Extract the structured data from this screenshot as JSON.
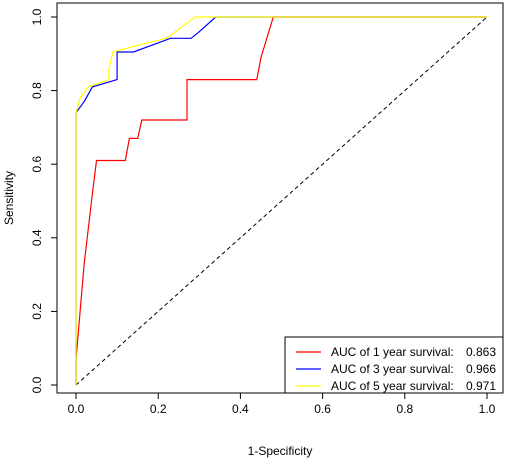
{
  "chart_data": {
    "type": "line",
    "title": "",
    "xlabel": "1-Specificity",
    "ylabel": "Sensitivity",
    "xlim": [
      0,
      1
    ],
    "ylim": [
      0,
      1
    ],
    "xticks": [
      "0.0",
      "0.2",
      "0.4",
      "0.6",
      "0.8",
      "1.0"
    ],
    "yticks": [
      "0.0",
      "0.2",
      "0.4",
      "0.6",
      "0.8",
      "1.0"
    ],
    "grid": false,
    "legend_position": "bottom-right",
    "reference_line": {
      "style": "dashed",
      "x": [
        0,
        1
      ],
      "y": [
        0,
        1
      ],
      "color": "#000000"
    },
    "series": [
      {
        "name": "AUC of 1 year survival:",
        "auc": "0.863",
        "color": "#ff0000",
        "x": [
          0,
          0,
          0.01,
          0.02,
          0.04,
          0.05,
          0.12,
          0.13,
          0.15,
          0.16,
          0.27,
          0.27,
          0.44,
          0.45,
          0.48,
          1.0
        ],
        "y": [
          0,
          0.07,
          0.2,
          0.33,
          0.52,
          0.61,
          0.61,
          0.67,
          0.67,
          0.72,
          0.72,
          0.83,
          0.83,
          0.89,
          1.0,
          1.0
        ]
      },
      {
        "name": "AUC of 3 year survival:",
        "auc": "0.966",
        "color": "#0000ff",
        "x": [
          0,
          0,
          0.02,
          0.04,
          0.1,
          0.1,
          0.14,
          0.23,
          0.28,
          0.3,
          0.34,
          1.0
        ],
        "y": [
          0,
          0.74,
          0.77,
          0.81,
          0.83,
          0.905,
          0.905,
          0.942,
          0.942,
          0.96,
          1.0,
          1.0
        ]
      },
      {
        "name": "AUC of 5 year survival:",
        "auc": "0.971",
        "color": "#ffff00",
        "x": [
          0,
          0,
          0.01,
          0.03,
          0.08,
          0.08,
          0.09,
          0.15,
          0.22,
          0.26,
          0.29,
          1.0
        ],
        "y": [
          0,
          0.74,
          0.78,
          0.81,
          0.83,
          0.86,
          0.905,
          0.923,
          0.942,
          0.975,
          1.0,
          1.0
        ]
      }
    ]
  }
}
